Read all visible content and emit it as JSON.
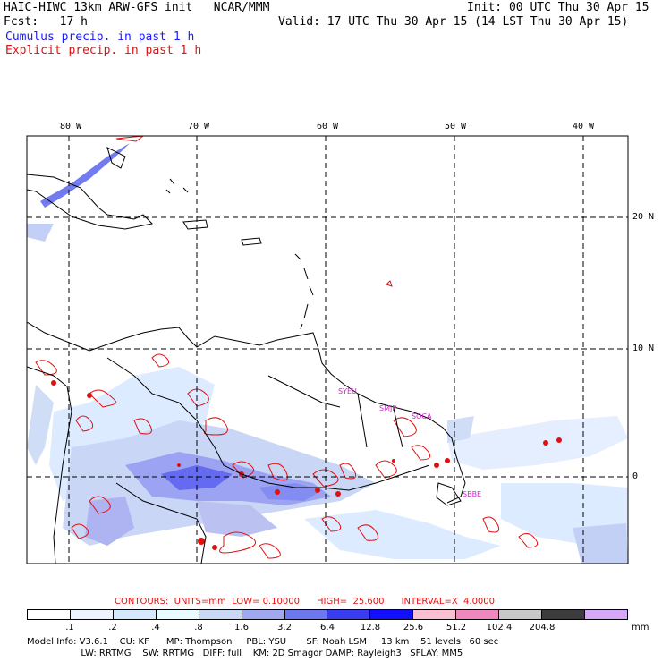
{
  "header": {
    "model_line": "HAIC-HIWC 13km ARW-GFS init   NCAR/MMM",
    "init": "Init: 00 UTC Thu 30 Apr 15",
    "fcst_label": "Fcst:   17 h",
    "valid": "Valid: 17 UTC Thu 30 Apr 15 (14 LST Thu 30 Apr 15)",
    "cumulus": "Cumulus precip. in past 1 h",
    "explicit": "Explicit precip. in past 1 h"
  },
  "axes": {
    "lon_labels": [
      "80 W",
      "70 W",
      "60 W",
      "50 W",
      "40 W"
    ],
    "lat_labels": [
      "20 N",
      "10 N",
      "0"
    ]
  },
  "stations": [
    "SYEU",
    "SMJP",
    "SOCA",
    "SBBE"
  ],
  "contours": "CONTOURS:  UNITS=mm  LOW= 0.10000      HIGH=  25.600      INTERVAL=X  4.0000",
  "colorbar": {
    "colors": [
      "#ffffff",
      "#eef4ff",
      "#d6e8ff",
      "#e8fbff",
      "#c8d8f5",
      "#a0a8f0",
      "#6e78ee",
      "#3a3cf0",
      "#1010ff",
      "#f8c0d0",
      "#f088c0",
      "#c8c8c8",
      "#3c3c3c",
      "#d8a8f8"
    ],
    "tick_labels": [
      ".1",
      ".2",
      ".4",
      ".8",
      "1.6",
      "3.2",
      "6.4",
      "12.8",
      "25.6",
      "51.2",
      "102.4",
      "204.8"
    ],
    "units": "mm"
  },
  "footer": {
    "line1": "Model Info: V3.6.1    CU: KF      MP: Thompson     PBL: YSU       SF: Noah LSM     13 km    51 levels   60 sec",
    "line2": "                   LW: RRTMG    SW: RRTMG   DIFF: full    KM: 2D Smagor DAMP: Rayleigh3   SFLAY: MM5"
  }
}
